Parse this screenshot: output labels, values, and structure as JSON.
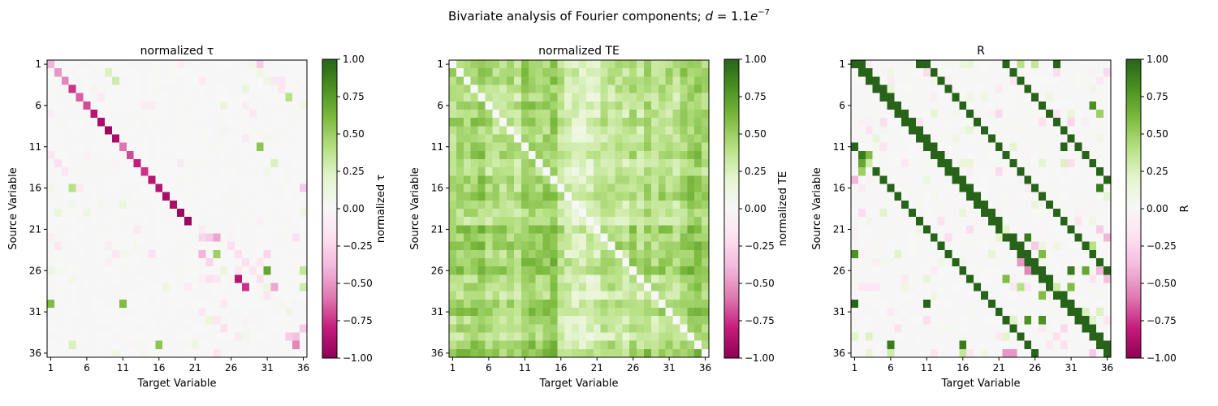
{
  "figure": {
    "suptitle": "Bivariate analysis of Fourier components; ",
    "suptitle_math_var": "d",
    "suptitle_math_eq": " = 1.1",
    "suptitle_math_base": "e",
    "suptitle_math_exp": "−7"
  },
  "chart_data": [
    {
      "type": "heatmap",
      "title": "normalized τ",
      "xlabel": "Target Variable",
      "ylabel": "Source Variable",
      "colorbar_label": "normalized τ",
      "n": 36,
      "xticks": [
        1,
        6,
        11,
        16,
        21,
        26,
        31,
        36
      ],
      "yticks": [
        1,
        6,
        11,
        16,
        21,
        26,
        31,
        36
      ],
      "clim": [
        -1,
        1
      ],
      "colorbar_ticks": [
        "1.00",
        "0.75",
        "0.50",
        "0.25",
        "0.00",
        "−0.25",
        "−0.50",
        "−0.75",
        "−1.00"
      ],
      "colormap": "PiYG",
      "description_values": {
        "diagonal": [
          -0.4,
          -0.5,
          -0.55,
          -0.75,
          -0.65,
          -0.7,
          -0.85,
          -0.9,
          -0.95,
          -0.9,
          -0.6,
          -0.7,
          -0.8,
          -0.75,
          -0.85,
          -0.85,
          -0.9,
          -0.9,
          -0.95,
          -0.95,
          0,
          0,
          0,
          0,
          0,
          0,
          -0.85,
          -0.75,
          0,
          0,
          0,
          0,
          0,
          -0.55,
          0,
          0
        ],
        "offdiag": [
          [
            1,
            30,
            -0.3
          ],
          [
            2,
            9,
            0.25
          ],
          [
            2,
            30,
            0.1
          ],
          [
            3,
            10,
            0.3
          ],
          [
            3,
            31,
            0.1
          ],
          [
            3,
            33,
            -0.15
          ],
          [
            4,
            28,
            0.15
          ],
          [
            4,
            33,
            -0.15
          ],
          [
            5,
            34,
            0.4
          ],
          [
            6,
            25,
            0.15
          ],
          [
            6,
            36,
            0.1
          ],
          [
            6,
            15,
            -0.1
          ],
          [
            11,
            30,
            0.55
          ],
          [
            12,
            1,
            -0.15
          ],
          [
            13,
            2,
            -0.2
          ],
          [
            13,
            32,
            0.25
          ],
          [
            14,
            3,
            -0.15
          ],
          [
            16,
            4,
            0.4
          ],
          [
            16,
            36,
            -0.3
          ],
          [
            22,
            22,
            -0.25
          ],
          [
            22,
            23,
            -0.3
          ],
          [
            22,
            24,
            -0.45
          ],
          [
            22,
            35,
            -0.2
          ],
          [
            24,
            22,
            -0.4
          ],
          [
            24,
            24,
            0.5
          ],
          [
            24,
            10,
            -0.15
          ],
          [
            24,
            15,
            -0.2
          ],
          [
            24,
            31,
            -0.25
          ],
          [
            25,
            23,
            -0.25
          ],
          [
            25,
            30,
            -0.15
          ],
          [
            26,
            31,
            0.7
          ],
          [
            26,
            36,
            0.35
          ],
          [
            27,
            23,
            -0.2
          ],
          [
            27,
            24,
            -0.15
          ],
          [
            28,
            32,
            -0.45
          ],
          [
            28,
            36,
            0.3
          ],
          [
            30,
            1,
            0.6
          ],
          [
            30,
            11,
            0.6
          ],
          [
            31,
            22,
            -0.15
          ],
          [
            32,
            24,
            -0.15
          ],
          [
            33,
            25,
            -0.2
          ],
          [
            34,
            34,
            -0.3
          ],
          [
            35,
            4,
            0.25
          ],
          [
            35,
            16,
            0.55
          ],
          [
            35,
            35,
            -0.55
          ],
          [
            36,
            24,
            -0.15
          ],
          [
            34,
            35,
            -0.35
          ],
          [
            33,
            36,
            -0.3
          ],
          [
            23,
            26,
            -0.2
          ],
          [
            24,
            27,
            -0.2
          ],
          [
            25,
            28,
            -0.2
          ],
          [
            21,
            22,
            -0.1
          ],
          [
            27,
            30,
            -0.2
          ],
          [
            29,
            31,
            -0.15
          ]
        ]
      }
    },
    {
      "type": "heatmap",
      "title": "normalized TE",
      "xlabel": "Target Variable",
      "ylabel": "Source Variable",
      "colorbar_label": "normalized TE",
      "n": 36,
      "xticks": [
        1,
        6,
        11,
        16,
        21,
        26,
        31,
        36
      ],
      "yticks": [
        1,
        6,
        11,
        16,
        21,
        26,
        31,
        36
      ],
      "clim": [
        -1,
        1
      ],
      "colorbar_ticks": [
        "1.00",
        "0.75",
        "0.50",
        "0.25",
        "0.00",
        "−0.25",
        "−0.50",
        "−0.75",
        "−1.00"
      ],
      "colormap": "PiYG",
      "description_values": {
        "diagonal": "0",
        "row_strength": [
          0.45,
          0.5,
          0.45,
          0.4,
          0.35,
          0.45,
          0.4,
          0.5,
          0.35,
          0.4,
          0.45,
          0.5,
          0.35,
          0.3,
          0.5,
          0.45,
          0.55,
          0.4,
          0.35,
          0.3,
          0.6,
          0.5,
          0.55,
          0.45,
          0.55,
          0.6,
          0.35,
          0.45,
          0.3,
          0.5,
          0.55,
          0.35,
          0.4,
          0.3,
          0.5,
          0.6
        ],
        "col_strength": [
          0.55,
          0.6,
          0.6,
          0.65,
          0.7,
          0.55,
          0.5,
          0.5,
          0.55,
          0.45,
          0.65,
          0.7,
          0.6,
          0.65,
          0.75,
          0.45,
          0.3,
          0.25,
          0.2,
          0.25,
          0.3,
          0.45,
          0.45,
          0.5,
          0.4,
          0.55,
          0.4,
          0.6,
          0.45,
          0.55,
          0.5,
          0.45,
          0.6,
          0.7,
          0.75,
          0.6
        ]
      }
    },
    {
      "type": "heatmap",
      "title": "R",
      "xlabel": "Target Variable",
      "ylabel": "Source Variable",
      "colorbar_label": "R",
      "n": 36,
      "xticks": [
        1,
        6,
        11,
        16,
        21,
        26,
        31,
        36
      ],
      "yticks": [
        1,
        6,
        11,
        16,
        21,
        26,
        31,
        36
      ],
      "clim": [
        -1,
        1
      ],
      "colorbar_ticks": [
        "1.00",
        "0.75",
        "0.50",
        "0.25",
        "0.00",
        "−0.25",
        "−0.50",
        "−0.75",
        "−1.00"
      ],
      "colormap": "PiYG",
      "description_values": {
        "strong_diagonals_offsets": [
          1,
          10,
          -10,
          21
        ],
        "extra": [
          [
            1,
            10,
            1
          ],
          [
            1,
            29,
            1
          ],
          [
            1,
            24,
            0.4
          ],
          [
            1,
            26,
            0.35
          ],
          [
            11,
            1,
            1
          ],
          [
            11,
            30,
            1
          ],
          [
            30,
            1,
            1
          ],
          [
            30,
            11,
            1
          ],
          [
            12,
            2,
            0.9
          ],
          [
            13,
            2,
            0.7
          ],
          [
            14,
            2,
            0.5
          ],
          [
            12,
            3,
            0.6
          ],
          [
            13,
            3,
            0.3
          ],
          [
            15,
            1,
            -0.4
          ],
          [
            16,
            35,
            0.9
          ],
          [
            24,
            1,
            0.8
          ],
          [
            35,
            6,
            0.9
          ],
          [
            35,
            16,
            0.9
          ],
          [
            6,
            34,
            0.8
          ],
          [
            7,
            35,
            0.5
          ],
          [
            26,
            31,
            0.9
          ],
          [
            26,
            33,
            0.7
          ],
          [
            28,
            31,
            0.6
          ],
          [
            28,
            29,
            0.3
          ],
          [
            21,
            35,
            -0.3
          ],
          [
            22,
            36,
            -0.4
          ],
          [
            23,
            34,
            0.4
          ],
          [
            25,
            24,
            -0.5
          ],
          [
            26,
            25,
            -0.55
          ],
          [
            27,
            22,
            0.6
          ],
          [
            28,
            24,
            0.4
          ],
          [
            29,
            27,
            0.6
          ],
          [
            32,
            25,
            0.8
          ],
          [
            32,
            27,
            0.8
          ],
          [
            22,
            25,
            0.9
          ],
          [
            24,
            27,
            0.6
          ],
          [
            23,
            26,
            -0.3
          ],
          [
            36,
            22,
            -0.5
          ],
          [
            36,
            23,
            -0.5
          ],
          [
            36,
            34,
            -0.3
          ],
          [
            36,
            6,
            0.3
          ],
          [
            36,
            16,
            0.35
          ],
          [
            26,
            35,
            -0.4
          ],
          [
            27,
            36,
            -0.35
          ],
          [
            21,
            22,
            0.2
          ],
          [
            22,
            21,
            0.2
          ]
        ]
      }
    }
  ]
}
